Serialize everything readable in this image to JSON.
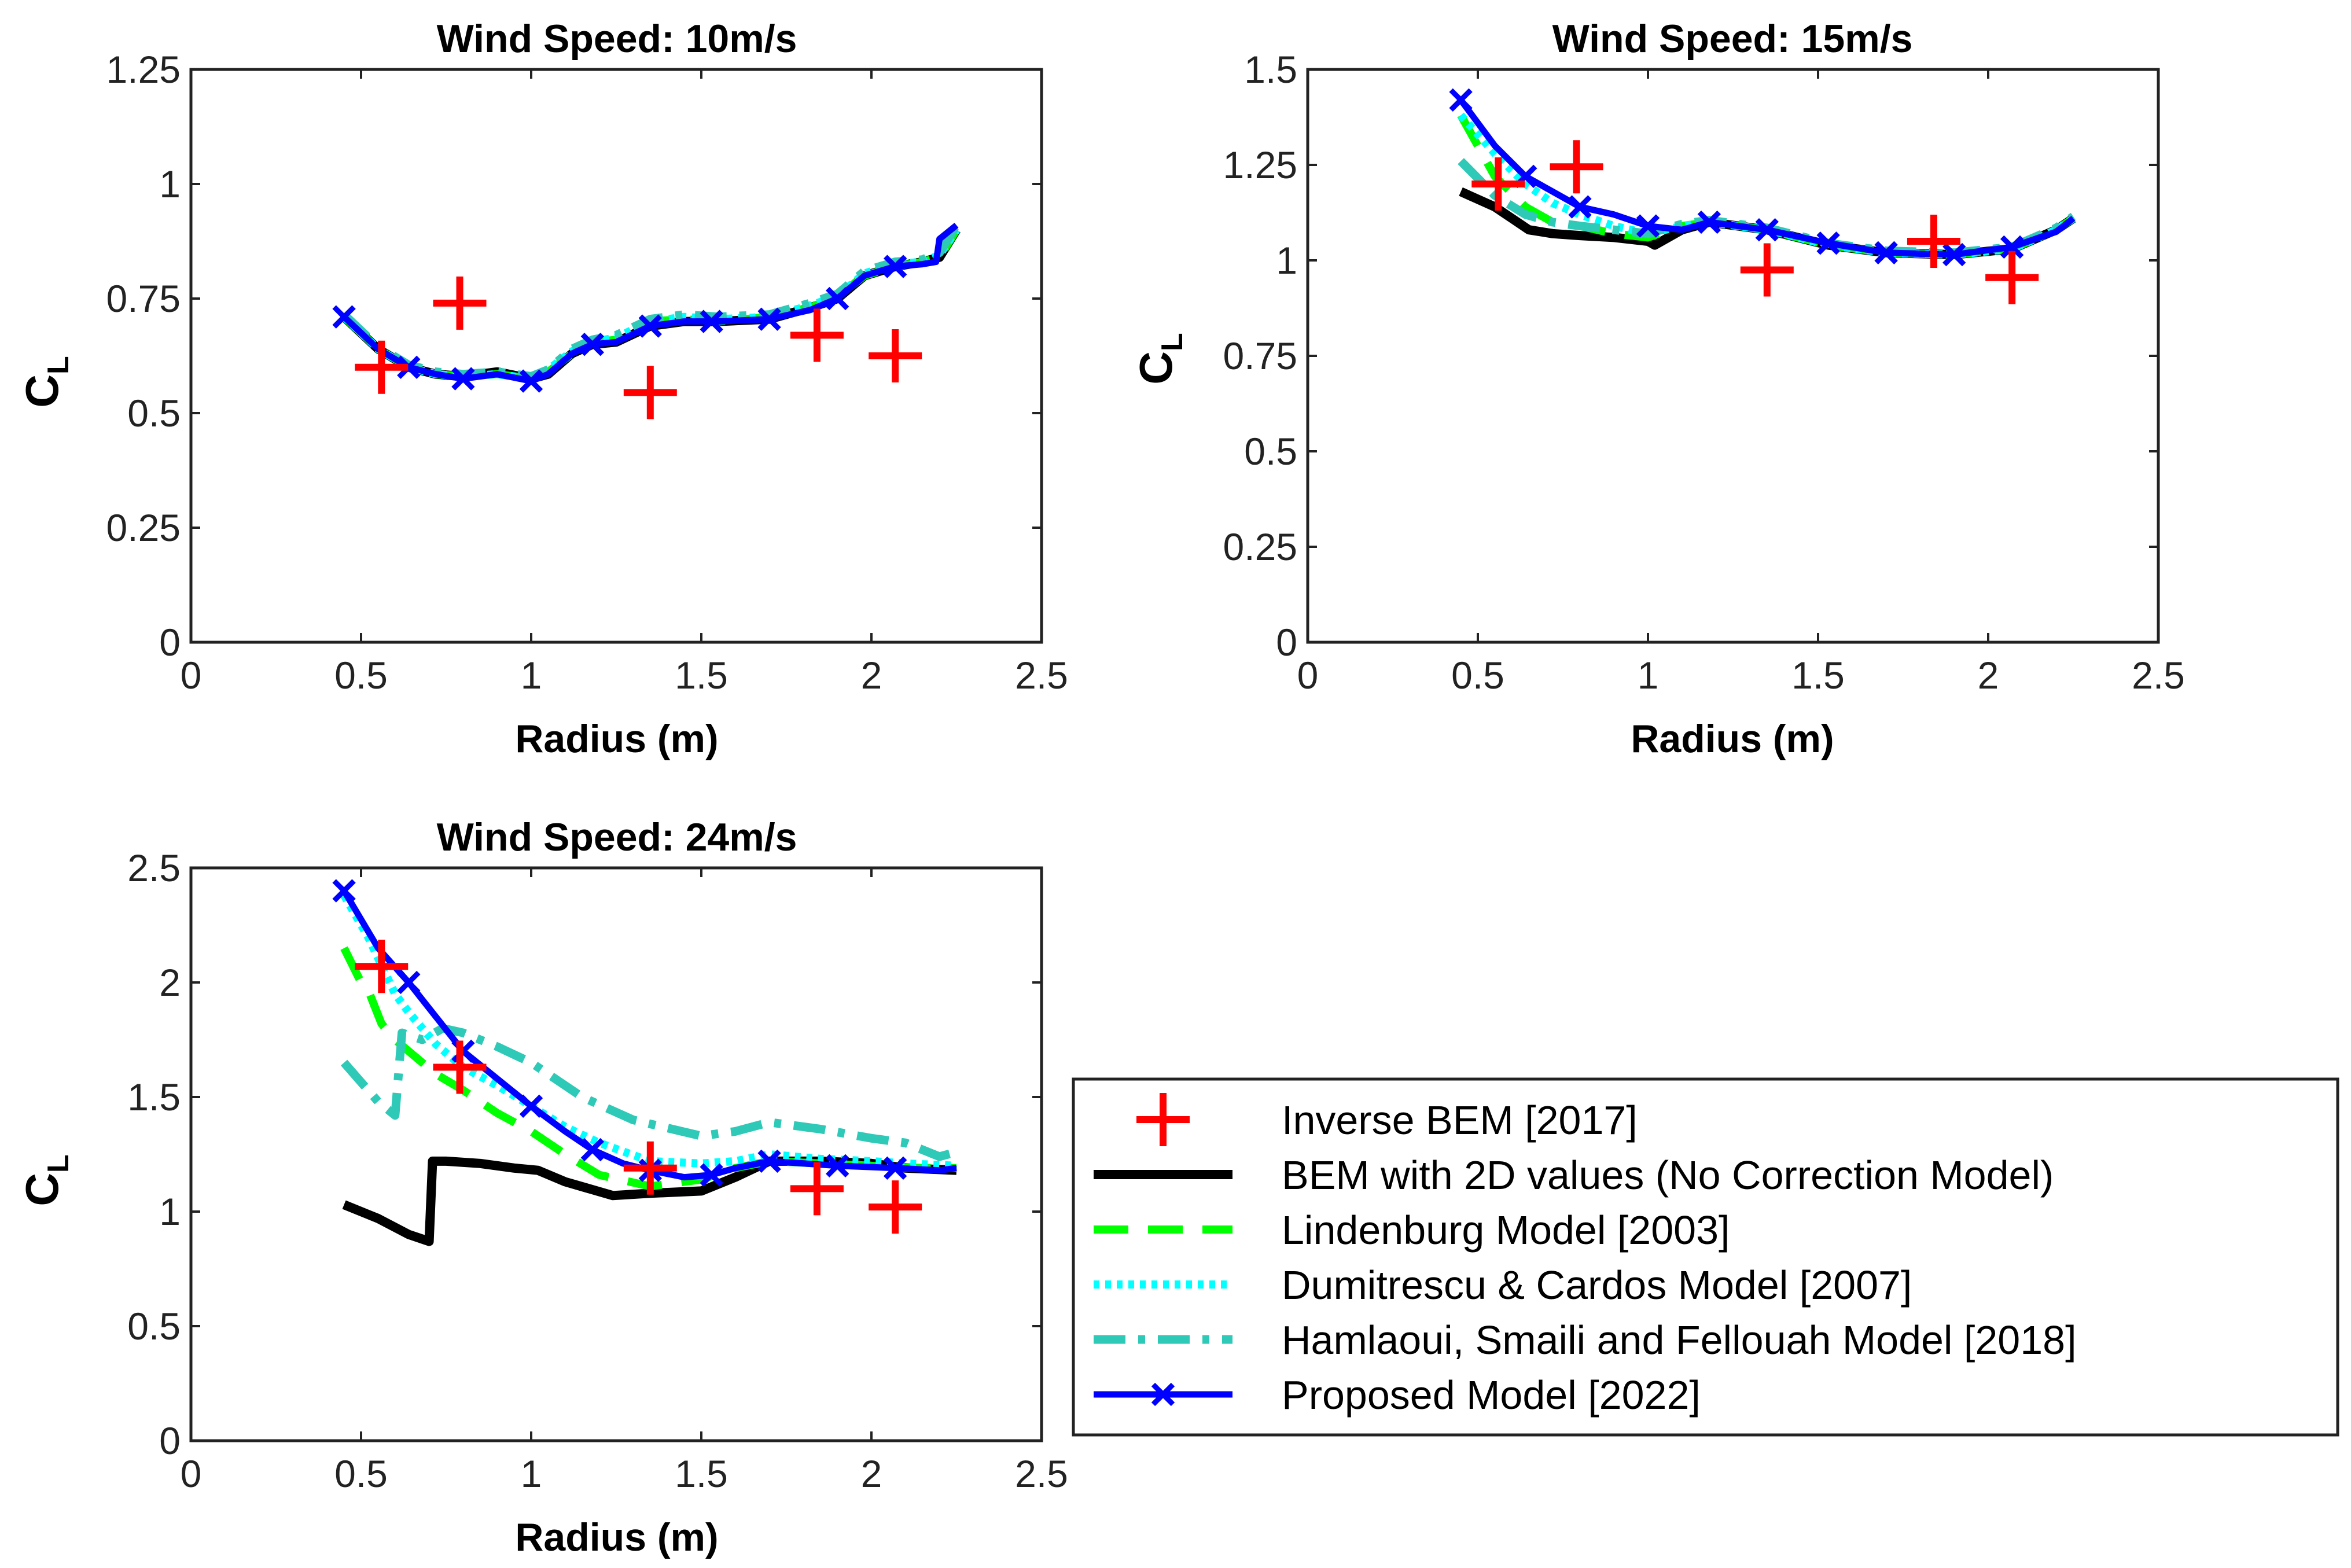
{
  "figure": {
    "legend": [
      {
        "key": "inverse",
        "label": "Inverse BEM [2017]",
        "color": "#ff0000",
        "style": "plus"
      },
      {
        "key": "bem2d",
        "label": "BEM with 2D values (No Correction Model)",
        "color": "#000000",
        "style": "solid-thick"
      },
      {
        "key": "lindenburg",
        "label": "Lindenburg Model [2003]",
        "color": "#00ff00",
        "style": "dashed"
      },
      {
        "key": "dumitrescu",
        "label": "Dumitrescu & Cardos Model [2007]",
        "color": "#00ffff",
        "style": "dotted"
      },
      {
        "key": "hamlaoui",
        "label": "Hamlaoui, Smaili and Fellouah Model  [2018]",
        "color": "#2ec9b7",
        "style": "dashdot"
      },
      {
        "key": "proposed",
        "label": "Proposed Model [2022]",
        "color": "#0000ff",
        "style": "solid-x"
      }
    ]
  },
  "chart_data": [
    {
      "type": "line",
      "title": "Wind Speed: 10m/s",
      "xlabel": "Radius (m)",
      "ylabel_main": "C",
      "ylabel_sub": "L",
      "xlim": [
        0,
        2.5
      ],
      "ylim": [
        0,
        1.25
      ],
      "xticks": [
        0,
        0.5,
        1,
        1.5,
        2,
        2.5
      ],
      "xtick_labels": [
        "0",
        "0.5",
        "1",
        "1.5",
        "2",
        "2.5"
      ],
      "yticks": [
        0,
        0.25,
        0.5,
        0.75,
        1,
        1.25
      ],
      "ytick_labels": [
        "0",
        "0.25",
        "0.5",
        "0.75",
        "1",
        "1.25"
      ],
      "series": [
        {
          "key": "inverse",
          "x": [
            0.56,
            0.79,
            1.35,
            1.84,
            2.07
          ],
          "y": [
            0.6,
            0.74,
            0.545,
            0.67,
            0.625
          ]
        },
        {
          "key": "bem2d",
          "x": [
            0.45,
            0.55,
            0.64,
            0.72,
            0.8,
            0.9,
            1.0,
            1.05,
            1.12,
            1.18,
            1.25,
            1.35,
            1.45,
            1.55,
            1.7,
            1.82,
            1.9,
            1.98,
            2.07,
            2.15,
            2.2,
            2.25
          ],
          "y": [
            0.71,
            0.64,
            0.6,
            0.585,
            0.58,
            0.59,
            0.575,
            0.585,
            0.63,
            0.65,
            0.655,
            0.69,
            0.7,
            0.7,
            0.705,
            0.73,
            0.75,
            0.8,
            0.82,
            0.83,
            0.84,
            0.9
          ]
        },
        {
          "key": "lindenburg",
          "x": [
            0.45,
            0.55,
            0.64,
            0.72,
            0.8,
            0.9,
            1.0,
            1.05,
            1.12,
            1.18,
            1.25,
            1.35,
            1.45,
            1.55,
            1.7,
            1.82,
            1.9,
            1.98,
            2.07,
            2.15,
            2.2,
            2.25
          ],
          "y": [
            0.71,
            0.64,
            0.6,
            0.585,
            0.58,
            0.585,
            0.575,
            0.59,
            0.63,
            0.655,
            0.66,
            0.7,
            0.705,
            0.7,
            0.71,
            0.73,
            0.755,
            0.8,
            0.82,
            0.83,
            0.84,
            0.9
          ]
        },
        {
          "key": "dumitrescu",
          "x": [
            0.45,
            0.55,
            0.64,
            0.72,
            0.8,
            0.9,
            1.0,
            1.05,
            1.12,
            1.18,
            1.25,
            1.35,
            1.45,
            1.55,
            1.7,
            1.82,
            1.9,
            1.98,
            2.07,
            2.15,
            2.2,
            2.25
          ],
          "y": [
            0.71,
            0.64,
            0.6,
            0.585,
            0.58,
            0.585,
            0.575,
            0.595,
            0.635,
            0.655,
            0.665,
            0.7,
            0.71,
            0.705,
            0.71,
            0.735,
            0.755,
            0.805,
            0.825,
            0.83,
            0.845,
            0.9
          ]
        },
        {
          "key": "hamlaoui",
          "x": [
            0.45,
            0.55,
            0.64,
            0.72,
            0.8,
            0.9,
            1.0,
            1.05,
            1.12,
            1.18,
            1.25,
            1.35,
            1.45,
            1.55,
            1.7,
            1.82,
            1.9,
            1.98,
            2.07,
            2.15,
            2.2,
            2.25
          ],
          "y": [
            0.715,
            0.645,
            0.605,
            0.59,
            0.585,
            0.59,
            0.58,
            0.595,
            0.64,
            0.66,
            0.67,
            0.705,
            0.715,
            0.71,
            0.715,
            0.74,
            0.76,
            0.81,
            0.83,
            0.835,
            0.85,
            0.91
          ]
        },
        {
          "key": "proposed",
          "x": [
            0.45,
            0.55,
            0.64,
            0.72,
            0.8,
            0.9,
            1.0,
            1.05,
            1.12,
            1.18,
            1.25,
            1.35,
            1.45,
            1.55,
            1.7,
            1.82,
            1.9,
            1.98,
            2.07,
            2.15,
            2.19,
            2.2,
            2.25
          ],
          "y": [
            0.71,
            0.64,
            0.6,
            0.585,
            0.575,
            0.585,
            0.57,
            0.585,
            0.63,
            0.65,
            0.655,
            0.69,
            0.7,
            0.7,
            0.705,
            0.725,
            0.75,
            0.8,
            0.82,
            0.825,
            0.83,
            0.88,
            0.91
          ],
          "markers_x": [
            0.45,
            0.64,
            0.8,
            1.0,
            1.18,
            1.35,
            1.53,
            1.7,
            1.9,
            2.07
          ]
        }
      ]
    },
    {
      "type": "line",
      "title": "Wind Speed: 15m/s",
      "xlabel": "Radius (m)",
      "ylabel_main": "C",
      "ylabel_sub": "L",
      "xlim": [
        0,
        2.5
      ],
      "ylim": [
        0,
        1.5
      ],
      "xticks": [
        0,
        0.5,
        1,
        1.5,
        2,
        2.5
      ],
      "xtick_labels": [
        "0",
        "0.5",
        "1",
        "1.5",
        "2",
        "2.5"
      ],
      "yticks": [
        0,
        0.25,
        0.5,
        0.75,
        1,
        1.25,
        1.5
      ],
      "ytick_labels": [
        "0",
        "0.25",
        "0.5",
        "0.75",
        "1",
        "1.25",
        "1.5"
      ],
      "series": [
        {
          "key": "inverse",
          "x": [
            0.56,
            0.79,
            1.35,
            1.84,
            2.07
          ],
          "y": [
            1.2,
            1.245,
            0.975,
            1.05,
            0.955
          ]
        },
        {
          "key": "bem2d",
          "x": [
            0.45,
            0.55,
            0.6,
            0.65,
            0.72,
            0.8,
            0.9,
            1.0,
            1.02,
            1.1,
            1.18,
            1.35,
            1.53,
            1.7,
            1.9,
            2.07,
            2.2,
            2.25
          ],
          "y": [
            1.18,
            1.14,
            1.11,
            1.08,
            1.07,
            1.065,
            1.06,
            1.05,
            1.04,
            1.08,
            1.1,
            1.08,
            1.04,
            1.02,
            1.015,
            1.03,
            1.08,
            1.11
          ]
        },
        {
          "key": "lindenburg",
          "x": [
            0.45,
            0.55,
            0.64,
            0.72,
            0.8,
            0.9,
            1.0,
            1.1,
            1.18,
            1.35,
            1.53,
            1.7,
            1.9,
            2.07,
            2.2,
            2.25
          ],
          "y": [
            1.38,
            1.22,
            1.14,
            1.1,
            1.09,
            1.07,
            1.06,
            1.09,
            1.1,
            1.08,
            1.04,
            1.02,
            1.015,
            1.03,
            1.08,
            1.11
          ]
        },
        {
          "key": "dumitrescu",
          "x": [
            0.45,
            0.55,
            0.64,
            0.72,
            0.8,
            0.9,
            1.0,
            1.1,
            1.18,
            1.35,
            1.53,
            1.7,
            1.9,
            2.07,
            2.2,
            2.25
          ],
          "y": [
            1.38,
            1.28,
            1.2,
            1.15,
            1.12,
            1.09,
            1.07,
            1.09,
            1.1,
            1.08,
            1.04,
            1.02,
            1.015,
            1.03,
            1.08,
            1.11
          ]
        },
        {
          "key": "hamlaoui",
          "x": [
            0.45,
            0.55,
            0.64,
            0.72,
            0.8,
            0.9,
            1.0,
            1.1,
            1.18,
            1.35,
            1.53,
            1.7,
            1.9,
            2.07,
            2.2,
            2.25
          ],
          "y": [
            1.26,
            1.17,
            1.12,
            1.1,
            1.09,
            1.08,
            1.07,
            1.095,
            1.105,
            1.085,
            1.045,
            1.025,
            1.02,
            1.035,
            1.085,
            1.115
          ]
        },
        {
          "key": "proposed",
          "x": [
            0.45,
            0.55,
            0.64,
            0.72,
            0.8,
            0.9,
            1.0,
            1.1,
            1.18,
            1.35,
            1.53,
            1.7,
            1.9,
            2.07,
            2.2,
            2.25
          ],
          "y": [
            1.42,
            1.3,
            1.22,
            1.18,
            1.14,
            1.12,
            1.09,
            1.08,
            1.1,
            1.08,
            1.045,
            1.02,
            1.015,
            1.035,
            1.075,
            1.11
          ],
          "markers_x": [
            0.45,
            0.64,
            0.8,
            1.0,
            1.18,
            1.35,
            1.53,
            1.7,
            1.9,
            2.07
          ]
        }
      ]
    },
    {
      "type": "line",
      "title": "Wind Speed: 24m/s",
      "xlabel": "Radius (m)",
      "ylabel_main": "C",
      "ylabel_sub": "L",
      "xlim": [
        0,
        2.5
      ],
      "ylim": [
        0,
        2.5
      ],
      "xticks": [
        0,
        0.5,
        1,
        1.5,
        2,
        2.5
      ],
      "xtick_labels": [
        "0",
        "0.5",
        "1",
        "1.5",
        "2",
        "2.5"
      ],
      "yticks": [
        0,
        0.5,
        1,
        1.5,
        2,
        2.5
      ],
      "ytick_labels": [
        "0",
        "0.5",
        "1",
        "1.5",
        "2",
        "2.5"
      ],
      "series": [
        {
          "key": "inverse",
          "x": [
            0.56,
            0.79,
            1.35,
            1.84,
            2.07
          ],
          "y": [
            2.07,
            1.63,
            1.19,
            1.1,
            1.02
          ]
        },
        {
          "key": "bem2d",
          "x": [
            0.45,
            0.55,
            0.64,
            0.68,
            0.7,
            0.71,
            0.75,
            0.85,
            0.95,
            1.02,
            1.1,
            1.24,
            1.35,
            1.5,
            1.6,
            1.7,
            1.85,
            2.0,
            2.1,
            2.25
          ],
          "y": [
            1.03,
            0.97,
            0.9,
            0.88,
            0.87,
            1.22,
            1.22,
            1.21,
            1.19,
            1.18,
            1.13,
            1.07,
            1.08,
            1.09,
            1.15,
            1.22,
            1.22,
            1.21,
            1.19,
            1.18
          ]
        },
        {
          "key": "lindenburg",
          "x": [
            0.45,
            0.5,
            0.52,
            0.56,
            0.6,
            0.64,
            0.72,
            0.8,
            0.9,
            1.0,
            1.1,
            1.2,
            1.35,
            1.5,
            1.6,
            1.7,
            1.85,
            2.0,
            2.1,
            2.25
          ],
          "y": [
            2.15,
            2.0,
            1.97,
            1.82,
            1.75,
            1.7,
            1.6,
            1.53,
            1.43,
            1.35,
            1.25,
            1.16,
            1.11,
            1.14,
            1.19,
            1.22,
            1.21,
            1.2,
            1.19,
            1.19
          ]
        },
        {
          "key": "dumitrescu",
          "x": [
            0.45,
            0.52,
            0.6,
            0.64,
            0.72,
            0.8,
            0.9,
            1.0,
            1.1,
            1.2,
            1.35,
            1.5,
            1.6,
            1.7,
            1.85,
            2.0,
            2.1,
            2.25
          ],
          "y": [
            2.38,
            2.2,
            1.95,
            1.87,
            1.73,
            1.63,
            1.55,
            1.46,
            1.37,
            1.3,
            1.22,
            1.21,
            1.22,
            1.25,
            1.23,
            1.22,
            1.21,
            1.2
          ]
        },
        {
          "key": "hamlaoui",
          "x": [
            0.45,
            0.55,
            0.6,
            0.61,
            0.62,
            0.68,
            0.74,
            0.8,
            0.9,
            1.0,
            1.05,
            1.15,
            1.3,
            1.5,
            1.6,
            1.7,
            1.85,
            2.0,
            2.1,
            2.2,
            2.25
          ],
          "y": [
            1.65,
            1.48,
            1.42,
            1.6,
            1.78,
            1.75,
            1.8,
            1.78,
            1.72,
            1.65,
            1.6,
            1.5,
            1.4,
            1.33,
            1.35,
            1.39,
            1.36,
            1.32,
            1.3,
            1.24,
            1.26
          ]
        },
        {
          "key": "proposed",
          "x": [
            0.45,
            0.55,
            0.64,
            0.72,
            0.8,
            0.9,
            1.0,
            1.1,
            1.18,
            1.27,
            1.35,
            1.45,
            1.53,
            1.6,
            1.7,
            1.8,
            1.9,
            2.07,
            2.2,
            2.25
          ],
          "y": [
            2.4,
            2.15,
            2.0,
            1.85,
            1.7,
            1.58,
            1.46,
            1.35,
            1.27,
            1.21,
            1.18,
            1.15,
            1.16,
            1.19,
            1.22,
            1.21,
            1.2,
            1.19,
            1.18,
            1.19
          ],
          "markers_x": [
            0.45,
            0.64,
            0.8,
            1.0,
            1.18,
            1.35,
            1.53,
            1.7,
            1.9,
            2.07
          ]
        }
      ]
    }
  ]
}
